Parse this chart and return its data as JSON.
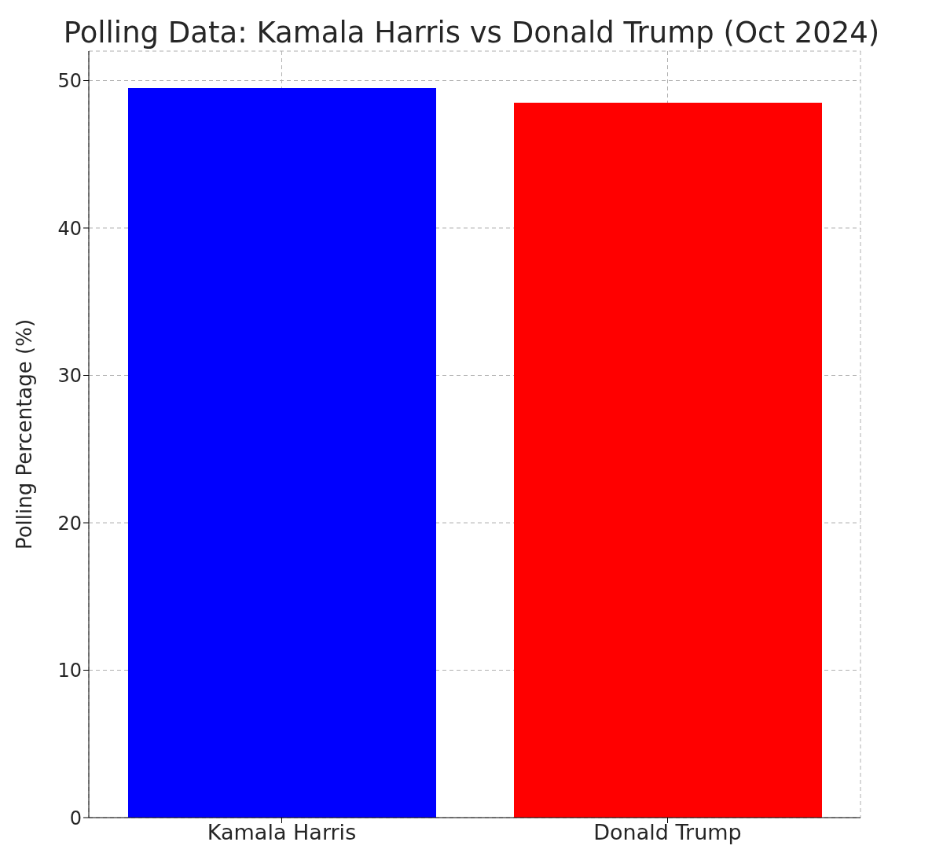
{
  "chart_data": {
    "type": "bar",
    "title": "Polling Data: Kamala Harris vs Donald Trump (Oct 2024)",
    "ylabel": "Polling Percentage (%)",
    "categories": [
      "Kamala Harris",
      "Donald Trump"
    ],
    "values": [
      49.5,
      48.5
    ],
    "colors": [
      "#0000ff",
      "#ff0000"
    ],
    "ylim": [
      0,
      52
    ],
    "yticks": [
      0,
      10,
      20,
      30,
      40,
      50
    ],
    "grid": true
  }
}
